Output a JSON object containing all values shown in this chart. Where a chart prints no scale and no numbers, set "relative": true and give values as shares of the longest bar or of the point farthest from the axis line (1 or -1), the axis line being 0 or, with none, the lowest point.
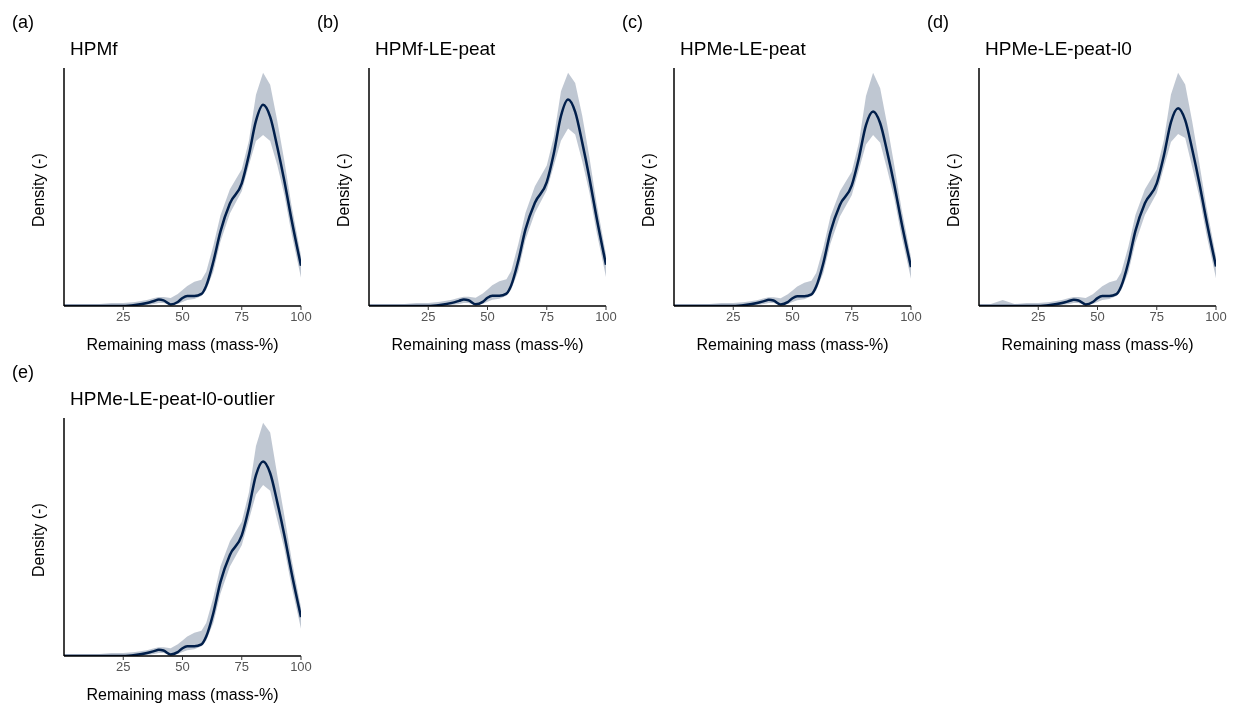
{
  "chart_data": [
    {
      "type": "line",
      "annotations": [
        "(a)"
      ],
      "title": "HPMf",
      "xlabel": "Remaining mass (mass-%)",
      "ylabel": "Density (-)",
      "relative": true,
      "xlim": [
        0,
        100
      ],
      "xticks": [
        25,
        50,
        75,
        100
      ],
      "grid": false,
      "legend": false,
      "marker": "none",
      "line_style": "solid",
      "x": [
        0,
        5,
        10,
        15,
        20,
        25,
        30,
        35,
        38,
        40,
        42,
        45,
        48,
        50,
        52,
        55,
        58,
        60,
        63,
        66,
        70,
        75,
        78,
        81,
        84,
        87,
        90,
        93,
        96,
        100
      ],
      "series": [
        {
          "color": "#011f4b",
          "values": [
            0,
            0,
            0,
            0,
            0,
            0,
            0.005,
            0.015,
            0.025,
            0.032,
            0.028,
            0.008,
            0.02,
            0.04,
            0.05,
            0.05,
            0.06,
            0.1,
            0.22,
            0.37,
            0.51,
            0.61,
            0.75,
            0.92,
            1.0,
            0.94,
            0.79,
            0.62,
            0.43,
            0.2
          ],
          "lower": [
            0,
            0,
            0,
            0,
            0,
            0,
            0,
            0.005,
            0.01,
            0.015,
            0.015,
            0.005,
            0.01,
            0.02,
            0.03,
            0.035,
            0.05,
            0.08,
            0.17,
            0.32,
            0.46,
            0.57,
            0.7,
            0.82,
            0.85,
            0.82,
            0.7,
            0.55,
            0.36,
            0.14
          ],
          "upper": [
            0.01,
            0.01,
            0.01,
            0.01,
            0.015,
            0.015,
            0.02,
            0.03,
            0.04,
            0.045,
            0.045,
            0.04,
            0.06,
            0.08,
            0.1,
            0.12,
            0.13,
            0.17,
            0.3,
            0.45,
            0.58,
            0.68,
            0.82,
            1.05,
            1.16,
            1.1,
            0.92,
            0.72,
            0.5,
            0.25
          ]
        }
      ]
    },
    {
      "type": "line",
      "annotations": [
        "(b)"
      ],
      "title": "HPMf-LE-peat",
      "xlabel": "Remaining mass (mass-%)",
      "ylabel": "Density (-)",
      "relative": true,
      "xlim": [
        0,
        100
      ],
      "xticks": [
        25,
        50,
        75,
        100
      ],
      "grid": false,
      "legend": false,
      "marker": "none",
      "line_style": "solid",
      "x": [
        0,
        5,
        10,
        15,
        20,
        25,
        30,
        35,
        38,
        40,
        42,
        45,
        48,
        50,
        52,
        55,
        58,
        60,
        63,
        66,
        70,
        75,
        78,
        81,
        84,
        87,
        90,
        93,
        96,
        100
      ],
      "series": [
        {
          "color": "#011f4b",
          "values": [
            0,
            0,
            0,
            0,
            0,
            0,
            0.005,
            0.015,
            0.025,
            0.032,
            0.028,
            0.008,
            0.02,
            0.04,
            0.05,
            0.05,
            0.06,
            0.1,
            0.22,
            0.37,
            0.5,
            0.6,
            0.74,
            0.92,
            1.0,
            0.94,
            0.79,
            0.62,
            0.43,
            0.2
          ],
          "lower": [
            0,
            0,
            0,
            0,
            0,
            0,
            0,
            0.005,
            0.01,
            0.015,
            0.015,
            0.005,
            0.01,
            0.02,
            0.03,
            0.035,
            0.05,
            0.08,
            0.17,
            0.32,
            0.45,
            0.56,
            0.68,
            0.8,
            0.86,
            0.83,
            0.7,
            0.55,
            0.36,
            0.14
          ],
          "upper": [
            0.01,
            0.01,
            0.01,
            0.01,
            0.015,
            0.015,
            0.02,
            0.03,
            0.04,
            0.045,
            0.045,
            0.04,
            0.06,
            0.08,
            0.1,
            0.12,
            0.13,
            0.17,
            0.3,
            0.45,
            0.58,
            0.68,
            0.82,
            1.04,
            1.13,
            1.08,
            0.92,
            0.72,
            0.5,
            0.25
          ]
        }
      ]
    },
    {
      "type": "line",
      "annotations": [
        "(c)"
      ],
      "title": "HPMe-LE-peat",
      "xlabel": "Remaining mass (mass-%)",
      "ylabel": "Density (-)",
      "relative": true,
      "xlim": [
        0,
        100
      ],
      "xticks": [
        25,
        50,
        75,
        100
      ],
      "grid": false,
      "legend": false,
      "marker": "none",
      "line_style": "solid",
      "x": [
        0,
        5,
        10,
        15,
        20,
        25,
        30,
        35,
        38,
        40,
        42,
        45,
        48,
        50,
        52,
        55,
        58,
        60,
        63,
        66,
        70,
        75,
        78,
        81,
        84,
        87,
        90,
        93,
        96,
        100
      ],
      "series": [
        {
          "color": "#011f4b",
          "values": [
            0,
            0,
            0,
            0,
            0,
            0,
            0.005,
            0.015,
            0.025,
            0.032,
            0.028,
            0.008,
            0.02,
            0.04,
            0.05,
            0.05,
            0.06,
            0.1,
            0.22,
            0.38,
            0.52,
            0.62,
            0.76,
            0.93,
            1.0,
            0.94,
            0.79,
            0.62,
            0.43,
            0.2
          ],
          "lower": [
            0,
            0,
            0,
            0,
            0,
            0,
            0,
            0.005,
            0.01,
            0.015,
            0.015,
            0.005,
            0.01,
            0.02,
            0.03,
            0.035,
            0.05,
            0.08,
            0.17,
            0.32,
            0.46,
            0.57,
            0.7,
            0.83,
            0.88,
            0.84,
            0.7,
            0.55,
            0.36,
            0.14
          ],
          "upper": [
            0.01,
            0.01,
            0.01,
            0.01,
            0.015,
            0.015,
            0.02,
            0.03,
            0.04,
            0.045,
            0.045,
            0.04,
            0.06,
            0.08,
            0.1,
            0.12,
            0.13,
            0.17,
            0.3,
            0.46,
            0.59,
            0.69,
            0.84,
            1.08,
            1.2,
            1.12,
            0.93,
            0.72,
            0.5,
            0.25
          ]
        }
      ]
    },
    {
      "type": "line",
      "annotations": [
        "(d)"
      ],
      "title": "HPMe-LE-peat-l0",
      "xlabel": "Remaining mass (mass-%)",
      "ylabel": "Density (-)",
      "relative": true,
      "xlim": [
        0,
        100
      ],
      "xticks": [
        25,
        50,
        75,
        100
      ],
      "grid": false,
      "legend": false,
      "marker": "none",
      "line_style": "solid",
      "x": [
        0,
        5,
        10,
        15,
        20,
        25,
        30,
        35,
        38,
        40,
        42,
        45,
        48,
        50,
        52,
        55,
        58,
        60,
        63,
        66,
        70,
        75,
        78,
        81,
        84,
        87,
        90,
        93,
        96,
        100
      ],
      "series": [
        {
          "color": "#011f4b",
          "values": [
            0,
            0,
            0,
            0,
            0,
            0,
            0.005,
            0.015,
            0.025,
            0.032,
            0.028,
            0.008,
            0.02,
            0.04,
            0.05,
            0.05,
            0.06,
            0.1,
            0.22,
            0.38,
            0.52,
            0.62,
            0.76,
            0.93,
            1.0,
            0.94,
            0.79,
            0.62,
            0.43,
            0.2
          ],
          "lower": [
            0,
            0,
            0,
            0,
            0,
            0,
            0,
            0.005,
            0.01,
            0.015,
            0.015,
            0.005,
            0.01,
            0.02,
            0.03,
            0.035,
            0.05,
            0.08,
            0.17,
            0.32,
            0.46,
            0.57,
            0.7,
            0.83,
            0.87,
            0.85,
            0.7,
            0.55,
            0.36,
            0.14
          ],
          "upper": [
            0.01,
            0.01,
            0.03,
            0.01,
            0.015,
            0.015,
            0.02,
            0.03,
            0.04,
            0.045,
            0.045,
            0.04,
            0.06,
            0.08,
            0.1,
            0.12,
            0.13,
            0.17,
            0.3,
            0.46,
            0.59,
            0.69,
            0.84,
            1.07,
            1.18,
            1.12,
            0.93,
            0.72,
            0.5,
            0.25
          ]
        }
      ]
    },
    {
      "type": "line",
      "annotations": [
        "(e)"
      ],
      "title": "HPMe-LE-peat-l0-outlier",
      "xlabel": "Remaining mass (mass-%)",
      "ylabel": "Density (-)",
      "relative": true,
      "xlim": [
        0,
        100
      ],
      "xticks": [
        25,
        50,
        75,
        100
      ],
      "grid": false,
      "legend": false,
      "marker": "none",
      "line_style": "solid",
      "x": [
        0,
        5,
        10,
        15,
        20,
        25,
        30,
        35,
        38,
        40,
        42,
        45,
        48,
        50,
        52,
        55,
        58,
        60,
        63,
        66,
        70,
        75,
        78,
        81,
        84,
        87,
        90,
        93,
        96,
        100
      ],
      "series": [
        {
          "color": "#011f4b",
          "values": [
            0,
            0,
            0,
            0,
            0,
            0,
            0.005,
            0.015,
            0.025,
            0.032,
            0.028,
            0.008,
            0.02,
            0.04,
            0.05,
            0.05,
            0.06,
            0.1,
            0.22,
            0.38,
            0.52,
            0.62,
            0.76,
            0.93,
            1.0,
            0.94,
            0.79,
            0.62,
            0.43,
            0.2
          ],
          "lower": [
            0,
            0,
            0,
            0,
            0,
            0,
            0,
            0.005,
            0.01,
            0.015,
            0.015,
            0.005,
            0.01,
            0.02,
            0.03,
            0.035,
            0.05,
            0.08,
            0.17,
            0.32,
            0.46,
            0.57,
            0.7,
            0.83,
            0.88,
            0.85,
            0.7,
            0.55,
            0.36,
            0.14
          ],
          "upper": [
            0.01,
            0.01,
            0.01,
            0.01,
            0.015,
            0.015,
            0.02,
            0.03,
            0.04,
            0.045,
            0.045,
            0.04,
            0.06,
            0.08,
            0.1,
            0.12,
            0.13,
            0.17,
            0.3,
            0.46,
            0.59,
            0.69,
            0.84,
            1.08,
            1.2,
            1.15,
            0.93,
            0.72,
            0.5,
            0.25
          ]
        }
      ]
    }
  ]
}
